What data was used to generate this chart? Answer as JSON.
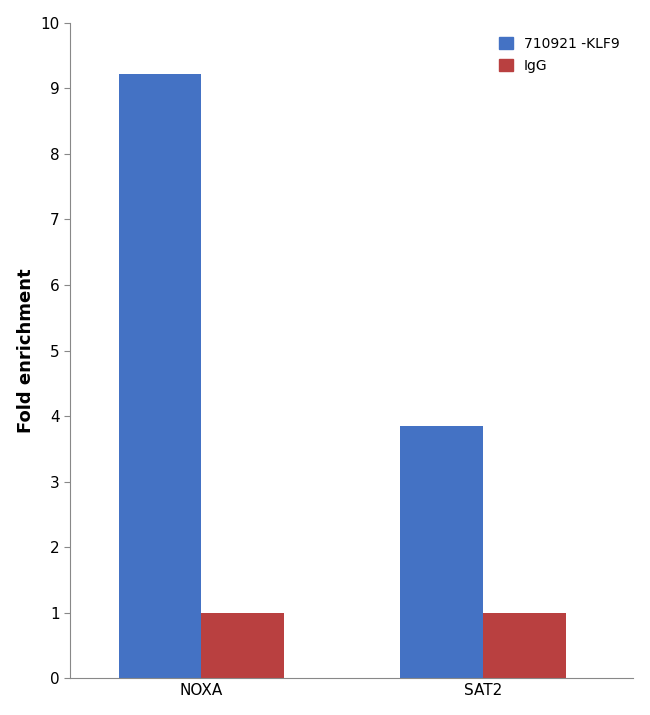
{
  "categories": [
    "NOXA",
    "SAT2"
  ],
  "klf9_values": [
    9.22,
    3.85
  ],
  "igg_values": [
    1.0,
    1.0
  ],
  "klf9_color": "#4472C4",
  "igg_color": "#B94040",
  "ylabel": "Fold enrichment",
  "ylim": [
    0,
    10
  ],
  "yticks": [
    0,
    1,
    2,
    3,
    4,
    5,
    6,
    7,
    8,
    9,
    10
  ],
  "legend_label_klf9": "710921 -KLF9",
  "legend_label_igg": "IgG",
  "bar_width": 0.22,
  "group_centers": [
    0.35,
    1.1
  ],
  "background_color": "#ffffff",
  "tick_fontsize": 11,
  "label_fontsize": 13,
  "legend_fontsize": 10,
  "figure_border_color": "#aaaaaa"
}
